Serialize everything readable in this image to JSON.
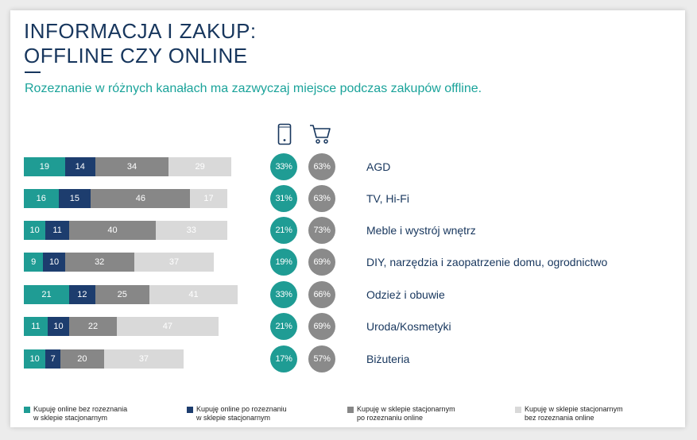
{
  "title_line1": "INFORMACJA I ZAKUP:",
  "title_line2": "OFFLINE CZY ONLINE",
  "subtitle": "Rozeznanie w różnych kanałach ma zazwyczaj miejsce podczas zakupów offline.",
  "icons": {
    "mobile": "smartphone-icon",
    "cart": "shopping-cart-icon"
  },
  "colors": {
    "teal": "#1f9c94",
    "navy": "#1d3d6e",
    "gray": "#878787",
    "lightgray": "#d9d9d9",
    "circle_teal": "#1f9c94",
    "circle_gray": "#8a8a8a"
  },
  "chart_data": {
    "type": "bar",
    "orientation": "horizontal-stacked",
    "categories": [
      "AGD",
      "TV, Hi-Fi",
      "Meble i wystrój wnętrz",
      "DIY, narzędzia i zaopatrzenie domu, ogrodnictwo",
      "Odzież i obuwie",
      "Uroda/Kosmetyki",
      "Biżuteria"
    ],
    "series": [
      {
        "name": "Kupuję online bez rozeznania w sklepie stacjonarnym",
        "values": [
          19,
          16,
          10,
          9,
          21,
          11,
          10
        ]
      },
      {
        "name": "Kupuję online po rozeznaniu w sklepie stacjonarnym",
        "values": [
          14,
          15,
          11,
          10,
          12,
          10,
          7
        ]
      },
      {
        "name": "Kupuję w sklepie stacjonarnym po rozeznaniu online",
        "values": [
          34,
          46,
          40,
          32,
          25,
          22,
          20
        ]
      },
      {
        "name": "Kupuję w sklepie stacjonarnym bez rozeznania online",
        "values": [
          29,
          17,
          33,
          37,
          41,
          47,
          37
        ]
      }
    ],
    "online_share": [
      "33%",
      "31%",
      "21%",
      "19%",
      "33%",
      "21%",
      "17%"
    ],
    "offline_share": [
      "63%",
      "63%",
      "73%",
      "69%",
      "66%",
      "69%",
      "57%"
    ],
    "legend": [
      {
        "line1": "Kupuję online bez rozeznania",
        "line2": "w sklepie stacjonarnym"
      },
      {
        "line1": "Kupuję online po rozeznaniu",
        "line2": "w sklepie stacjonarnym"
      },
      {
        "line1": "Kupuję w sklepie stacjonarnym",
        "line2": "po rozeznaniu online"
      },
      {
        "line1": "Kupuję w sklepie stacjonarnym",
        "line2": "bez rozeznania online"
      }
    ],
    "legend_position": "bottom",
    "grid": false
  }
}
